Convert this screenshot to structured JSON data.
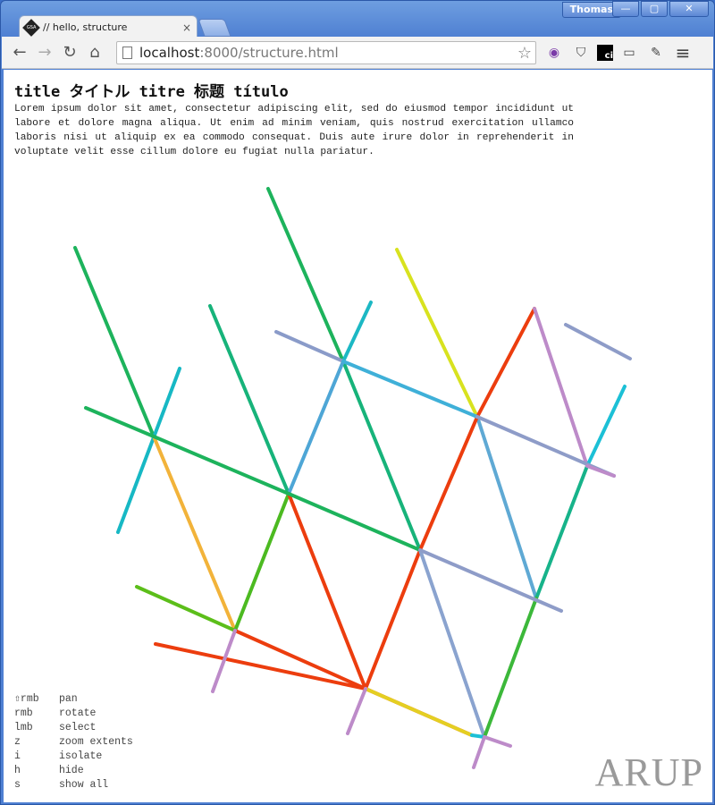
{
  "window": {
    "user": "Thomas",
    "minimize": "—",
    "maximize": "▢",
    "close": "✕"
  },
  "tab": {
    "title": "// hello, structure",
    "favicon_text": "GSA",
    "close": "×"
  },
  "toolbar": {
    "back": "←",
    "forward": "→",
    "reload": "↻",
    "home": "⌂",
    "url_host": "localhost",
    "url_rest": ":8000/structure.html",
    "bookmark": "☆",
    "extensions": [
      {
        "name": "color-wheel-icon",
        "glyph": "◉"
      },
      {
        "name": "pocket-icon",
        "glyph": "⛉"
      },
      {
        "name": "ci-icon",
        "glyph": "ci"
      },
      {
        "name": "cast-icon",
        "glyph": "▭"
      },
      {
        "name": "pencil-icon",
        "glyph": "✎"
      },
      {
        "name": "menu-icon",
        "glyph": "≡"
      }
    ]
  },
  "page": {
    "title": "title タイトル titre 标题 título",
    "lorem": "Lorem ipsum dolor sit amet, consectetur adipiscing elit, sed do eiusmod tempor incididunt ut labore et dolore magna aliqua. Ut enim ad minim veniam, quis nostrud exercitation ullamco laboris nisi ut aliquip ex ea commodo consequat. Duis aute irure dolor in reprehenderit in voluptate velit esse cillum dolore eu fugiat nulla pariatur.",
    "help": [
      {
        "key": "⇧rmb",
        "action": "pan"
      },
      {
        "key": "rmb",
        "action": "rotate"
      },
      {
        "key": "lmb",
        "action": "select"
      },
      {
        "key": "z",
        "action": "zoom extents"
      },
      {
        "key": "i",
        "action": "isolate"
      },
      {
        "key": "h",
        "action": "hide"
      },
      {
        "key": "s",
        "action": "show all"
      }
    ],
    "logo": "ARUP"
  },
  "colors": {
    "green": "#1db35c",
    "teal": "#17b8a6",
    "cyan": "#1cb8d6",
    "blue": "#4ea6d6",
    "steel": "#8a9bc9",
    "lavender": "#8e9cc8",
    "yellow": "#d8e21f",
    "gold": "#e9b92b",
    "orange": "#f2b33a",
    "red": "#ec3d0e",
    "limegreen": "#4cba21",
    "purple": "#bd8bc9"
  }
}
